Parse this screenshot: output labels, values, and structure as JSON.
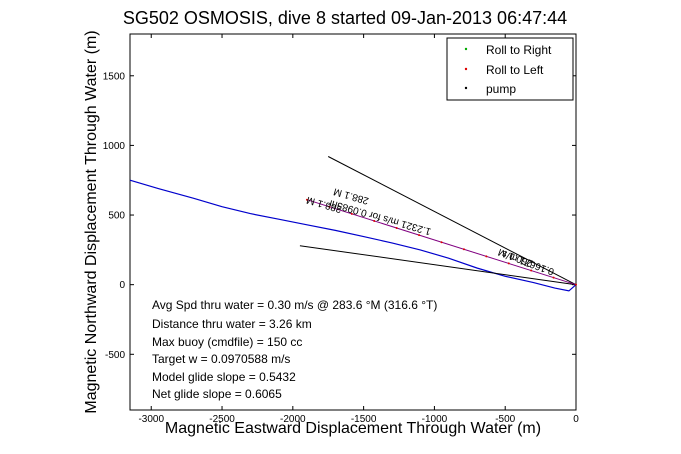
{
  "chart_data": {
    "type": "line",
    "title": "SG502 OSMOSIS, dive 8 started 09-Jan-2013 06:47:44",
    "xlabel": "Magnetic Eastward Displacement Through Water (m)",
    "ylabel": "Magnetic Northward Displacement Through Water (m)",
    "xlim": [
      -3150,
      0
    ],
    "ylim": [
      -900,
      1800
    ],
    "xticks": [
      -3000,
      -2500,
      -2000,
      -1500,
      -1000,
      -500,
      0
    ],
    "yticks": [
      -500,
      0,
      500,
      1000,
      1500
    ],
    "grid": false,
    "legend_position": "top-right",
    "legend": [
      {
        "name": "Roll to Right",
        "color": "#00aa00",
        "marker": "dot"
      },
      {
        "name": "Roll to Left",
        "color": "#dd0000",
        "marker": "dot"
      },
      {
        "name": "pump",
        "color": "#000000",
        "marker": "dot"
      }
    ],
    "series": [
      {
        "name": "track",
        "color": "#0000cc",
        "x": [
          -3150,
          -2950,
          -2700,
          -2500,
          -2300,
          -2100,
          -1900,
          -1700,
          -1500,
          -1300,
          -1100,
          -900,
          -700,
          -500,
          -300,
          -150,
          -50,
          0
        ],
        "y": [
          750,
          690,
          620,
          560,
          510,
          470,
          430,
          390,
          345,
          300,
          250,
          190,
          120,
          60,
          15,
          -25,
          -45,
          0
        ]
      },
      {
        "name": "heading-line-upper",
        "color": "#000000",
        "x": [
          -1750,
          0
        ],
        "y": [
          920,
          0
        ]
      },
      {
        "name": "heading-line-lower",
        "color": "#000000",
        "x": [
          -1950,
          0
        ],
        "y": [
          280,
          0
        ]
      },
      {
        "name": "speed-vector",
        "color": "#800080",
        "x": [
          -1900,
          0
        ],
        "y": [
          610,
          0
        ]
      }
    ],
    "annotations": [
      "Avg Spd thru water = 0.30 m/s @ 283.6 °M (316.6 °T)",
      "Distance thru water = 3.26 km",
      "Max buoy (cmdfile) = 150 cc",
      "Target w = 0.0970588 m/s",
      "Model glide slope = 0.5432",
      "Net glide slope = 0.6065"
    ],
    "rotated_labels": [
      "288.1 M",
      "1.2321 m/s for 0.0983hr",
      "260.1 M",
      "0.16671 m/s",
      "288.1 M"
    ]
  }
}
